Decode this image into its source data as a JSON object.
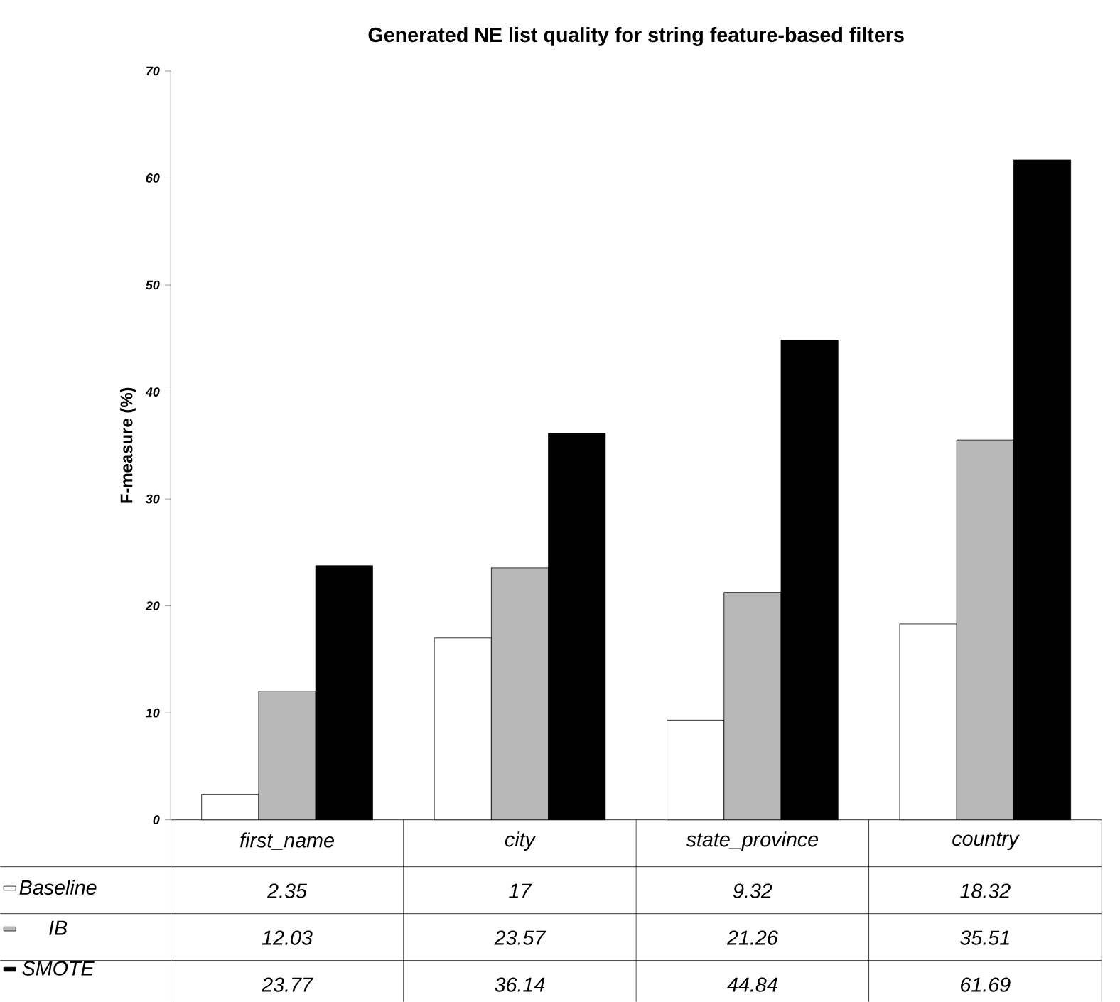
{
  "chart_data": {
    "type": "bar",
    "title": "Generated NE list quality for string feature-based filters",
    "ylabel": "F-measure (%)",
    "categories": [
      "first_name",
      "city",
      "state_province",
      "country"
    ],
    "series": [
      {
        "name": "Baseline",
        "color": "#ffffff",
        "values": [
          2.35,
          17,
          9.32,
          18.32
        ]
      },
      {
        "name": "IB",
        "color": "#b8b8b8",
        "values": [
          12.03,
          23.57,
          21.26,
          35.51
        ]
      },
      {
        "name": "SMOTE",
        "color": "#000000",
        "values": [
          23.77,
          36.14,
          44.84,
          61.69
        ]
      }
    ],
    "ylim": [
      0,
      70
    ],
    "yticks": [
      0,
      10,
      20,
      30,
      40,
      50,
      60,
      70
    ],
    "grid": false,
    "legend": "bottom left",
    "data_labels": true
  }
}
